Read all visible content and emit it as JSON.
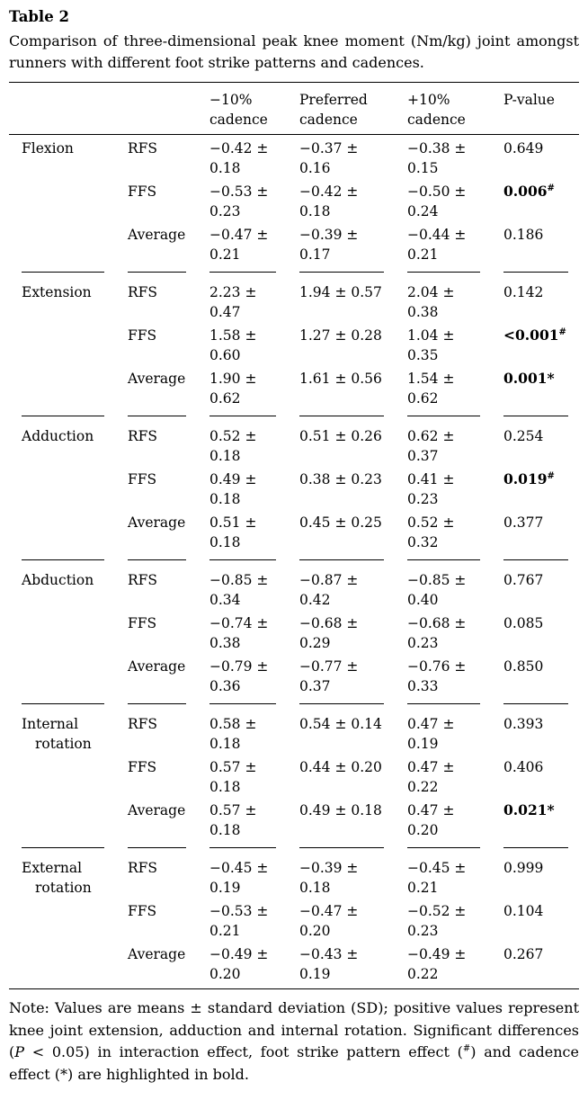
{
  "title": "Table 2",
  "caption": "Comparison of three-dimensional peak knee moment (Nm/kg) joint amongst runners with different foot strike patterns and cadences.",
  "colors": {
    "text": "#000000",
    "background": "#ffffff",
    "rules": "#000000"
  },
  "table": {
    "columns": [
      "",
      "",
      "−10%\ncadence",
      "Preferred\ncadence",
      "+10%\ncadence",
      "P-value"
    ],
    "groups": [
      {
        "joint": "Flexion",
        "rows": [
          {
            "pattern": "RFS",
            "minus10": "−0.42 ±\n0.18",
            "preferred": "−0.37 ±\n0.16",
            "plus10": "−0.38 ±\n0.15",
            "p": "0.649",
            "p_sup": "",
            "p_bold": false
          },
          {
            "pattern": "FFS",
            "minus10": "−0.53 ±\n0.23",
            "preferred": "−0.42 ±\n0.18",
            "plus10": "−0.50 ±\n0.24",
            "p": "0.006",
            "p_sup": "#",
            "p_bold": true
          },
          {
            "pattern": "Average",
            "minus10": "−0.47 ±\n0.21",
            "preferred": "−0.39 ±\n0.17",
            "plus10": "−0.44 ±\n0.21",
            "p": "0.186",
            "p_sup": "",
            "p_bold": false
          }
        ]
      },
      {
        "joint": "Extension",
        "rows": [
          {
            "pattern": "RFS",
            "minus10": "2.23 ±\n0.47",
            "preferred": "1.94 ± 0.57",
            "plus10": "2.04 ±\n0.38",
            "p": "0.142",
            "p_sup": "",
            "p_bold": false
          },
          {
            "pattern": "FFS",
            "minus10": "1.58 ±\n0.60",
            "preferred": "1.27 ± 0.28",
            "plus10": "1.04 ±\n0.35",
            "p": "<0.001",
            "p_sup": "#",
            "p_bold": true
          },
          {
            "pattern": "Average",
            "minus10": "1.90 ±\n0.62",
            "preferred": "1.61 ± 0.56",
            "plus10": "1.54 ±\n0.62",
            "p": "0.001*",
            "p_sup": "",
            "p_bold": true
          }
        ]
      },
      {
        "joint": "Adduction",
        "rows": [
          {
            "pattern": "RFS",
            "minus10": "0.52 ±\n0.18",
            "preferred": "0.51 ± 0.26",
            "plus10": "0.62 ±\n0.37",
            "p": "0.254",
            "p_sup": "",
            "p_bold": false
          },
          {
            "pattern": "FFS",
            "minus10": "0.49 ±\n0.18",
            "preferred": "0.38 ± 0.23",
            "plus10": "0.41 ±\n0.23",
            "p": "0.019",
            "p_sup": "#",
            "p_bold": true
          },
          {
            "pattern": "Average",
            "minus10": "0.51 ±\n0.18",
            "preferred": "0.45 ± 0.25",
            "plus10": "0.52 ±\n0.32",
            "p": "0.377",
            "p_sup": "",
            "p_bold": false
          }
        ]
      },
      {
        "joint": "Abduction",
        "rows": [
          {
            "pattern": "RFS",
            "minus10": "−0.85 ±\n0.34",
            "preferred": "−0.87 ±\n0.42",
            "plus10": "−0.85 ±\n0.40",
            "p": "0.767",
            "p_sup": "",
            "p_bold": false
          },
          {
            "pattern": "FFS",
            "minus10": "−0.74 ±\n0.38",
            "preferred": "−0.68 ±\n0.29",
            "plus10": "−0.68 ±\n0.23",
            "p": "0.085",
            "p_sup": "",
            "p_bold": false
          },
          {
            "pattern": "Average",
            "minus10": "−0.79 ±\n0.36",
            "preferred": "−0.77 ±\n0.37",
            "plus10": "−0.76 ±\n0.33",
            "p": "0.850",
            "p_sup": "",
            "p_bold": false
          }
        ]
      },
      {
        "joint": "Internal rotation",
        "rows": [
          {
            "pattern": "RFS",
            "minus10": "0.58 ±\n0.18",
            "preferred": "0.54 ± 0.14",
            "plus10": "0.47 ±\n0.19",
            "p": "0.393",
            "p_sup": "",
            "p_bold": false
          },
          {
            "pattern": "FFS",
            "minus10": "0.57 ±\n0.18",
            "preferred": "0.44 ± 0.20",
            "plus10": "0.47 ±\n0.22",
            "p": "0.406",
            "p_sup": "",
            "p_bold": false
          },
          {
            "pattern": "Average",
            "minus10": "0.57 ±\n0.18",
            "preferred": "0.49 ± 0.18",
            "plus10": "0.47 ±\n0.20",
            "p": "0.021*",
            "p_sup": "",
            "p_bold": true
          }
        ]
      },
      {
        "joint": "External rotation",
        "rows": [
          {
            "pattern": "RFS",
            "minus10": "−0.45 ±\n0.19",
            "preferred": "−0.39 ±\n0.18",
            "plus10": "−0.45 ±\n0.21",
            "p": "0.999",
            "p_sup": "",
            "p_bold": false
          },
          {
            "pattern": "FFS",
            "minus10": "−0.53 ±\n0.21",
            "preferred": "−0.47 ±\n0.20",
            "plus10": "−0.52 ±\n0.23",
            "p": "0.104",
            "p_sup": "",
            "p_bold": false
          },
          {
            "pattern": "Average",
            "minus10": "−0.49 ±\n0.20",
            "preferred": "−0.43 ±\n0.19",
            "plus10": "−0.49 ±\n0.22",
            "p": "0.267",
            "p_sup": "",
            "p_bold": false
          }
        ]
      }
    ]
  },
  "note": {
    "parts": [
      {
        "text": "Note: Values are means ± standard deviation (SD); positive values represent knee joint extension, adduction and internal rotation. Significant differences (",
        "style": ""
      },
      {
        "text": "P",
        "style": "italic"
      },
      {
        "text": " < 0.05) in interaction effect, foot strike pattern effect (",
        "style": ""
      },
      {
        "text": "#",
        "style": "sup"
      },
      {
        "text": ") and cadence effect (*) are highlighted in bold.",
        "style": ""
      }
    ]
  }
}
